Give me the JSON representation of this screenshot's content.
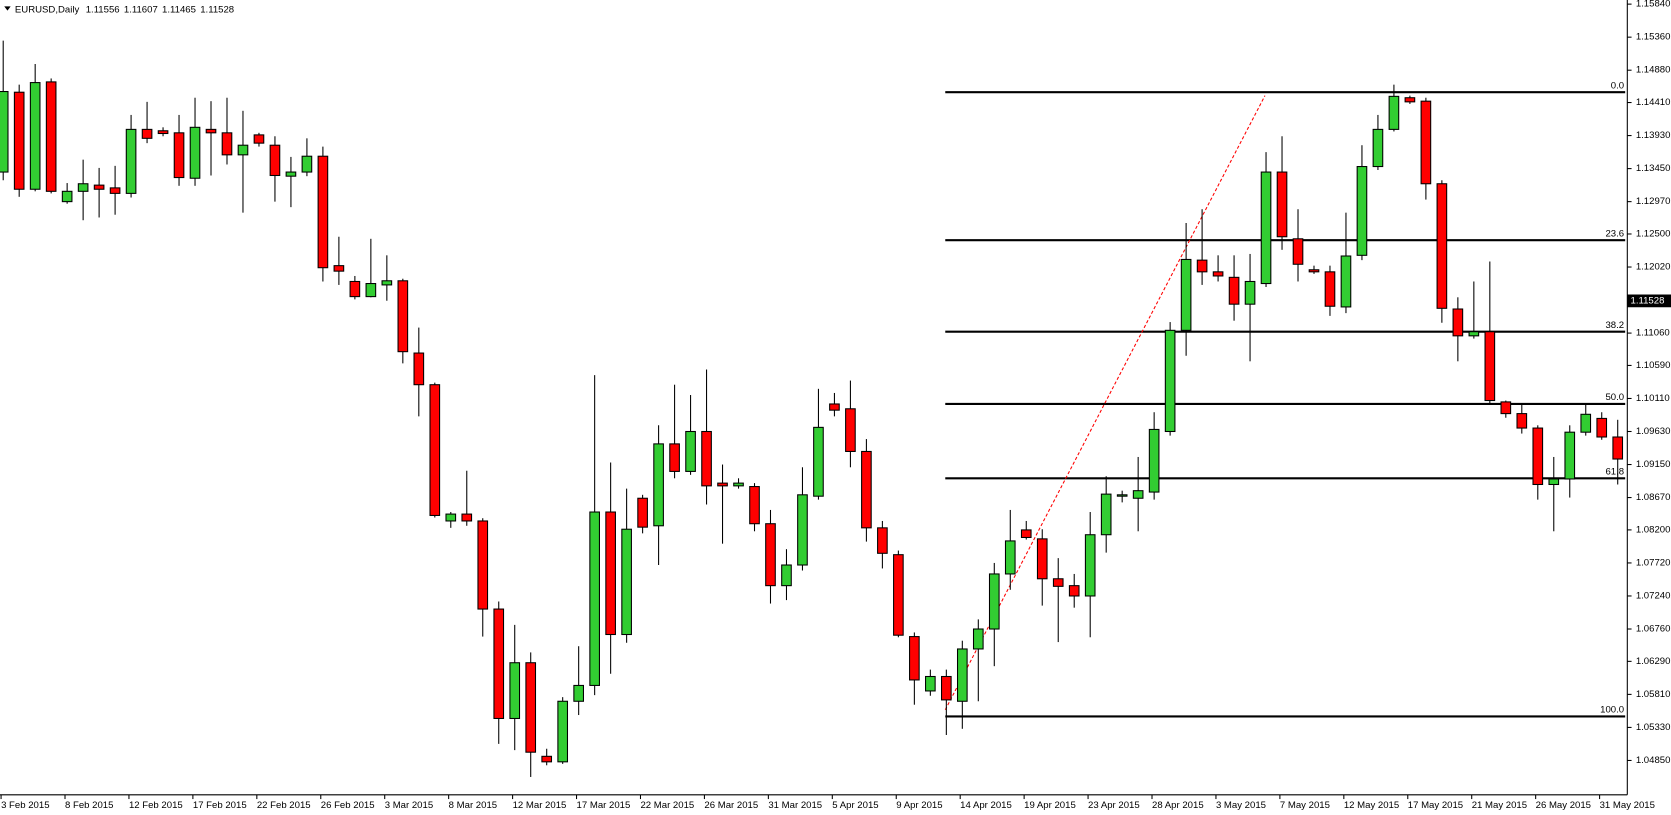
{
  "chart_data": {
    "type": "candlestick",
    "symbol": "EURUSD,Daily",
    "quote": {
      "open": 1.11556,
      "high": 1.11607,
      "low": 1.11465,
      "close": 1.11528
    },
    "up_color": "#32cd32",
    "down_color": "#ff0000",
    "ylim": [
      1.0436,
      1.159
    ],
    "yticks": [
      {
        "value": 1.1584,
        "label": "1.15840"
      },
      {
        "value": 1.1536,
        "label": "1.15360"
      },
      {
        "value": 1.1488,
        "label": "1.14880"
      },
      {
        "value": 1.1441,
        "label": "1.14410"
      },
      {
        "value": 1.1393,
        "label": "1.13930"
      },
      {
        "value": 1.1345,
        "label": "1.13450"
      },
      {
        "value": 1.1297,
        "label": "1.12970"
      },
      {
        "value": 1.125,
        "label": "1.12500"
      },
      {
        "value": 1.1202,
        "label": "1.12020"
      },
      {
        "value": 1.1106,
        "label": "1.11060"
      },
      {
        "value": 1.1059,
        "label": "1.10590"
      },
      {
        "value": 1.1011,
        "label": "1.10110"
      },
      {
        "value": 1.0963,
        "label": "1.09630"
      },
      {
        "value": 1.0915,
        "label": "1.09150"
      },
      {
        "value": 1.0867,
        "label": "1.08670"
      },
      {
        "value": 1.082,
        "label": "1.08200"
      },
      {
        "value": 1.0772,
        "label": "1.07720"
      },
      {
        "value": 1.0724,
        "label": "1.07240"
      },
      {
        "value": 1.0676,
        "label": "1.06760"
      },
      {
        "value": 1.0629,
        "label": "1.06290"
      },
      {
        "value": 1.0581,
        "label": "1.05810"
      },
      {
        "value": 1.0533,
        "label": "1.05330"
      },
      {
        "value": 1.0485,
        "label": "1.04850"
      }
    ],
    "categories": [
      "3 Feb 2015",
      null,
      null,
      null,
      "8 Feb 2015",
      null,
      null,
      null,
      "12 Feb 2015",
      null,
      null,
      null,
      "17 Feb 2015",
      null,
      null,
      null,
      "22 Feb 2015",
      null,
      null,
      null,
      "26 Feb 2015",
      null,
      null,
      null,
      "3 Mar 2015",
      null,
      null,
      null,
      "8 Mar 2015",
      null,
      null,
      null,
      "12 Mar 2015",
      null,
      null,
      null,
      "17 Mar 2015",
      null,
      null,
      null,
      "22 Mar 2015",
      null,
      null,
      null,
      "26 Mar 2015",
      null,
      null,
      null,
      "31 Mar 2015",
      null,
      null,
      null,
      "5 Apr 2015",
      null,
      null,
      null,
      "9 Apr 2015",
      null,
      null,
      null,
      "14 Apr 2015",
      null,
      null,
      null,
      "19 Apr 2015",
      null,
      null,
      null,
      "23 Apr 2015",
      null,
      null,
      null,
      "28 Apr 2015",
      null,
      null,
      null,
      "3 May 2015",
      null,
      null,
      null,
      "7 May 2015",
      null,
      null,
      null,
      "12 May 2015",
      null,
      null,
      null,
      "17 May 2015",
      null,
      null,
      null,
      "21 May 2015",
      null,
      null,
      null,
      "26 May 2015",
      null,
      null,
      null,
      "31 May 2015",
      null
    ],
    "open": [
      1.134,
      1.1456,
      1.1315,
      1.1471,
      1.1297,
      1.1312,
      1.1321,
      1.1317,
      1.1309,
      1.1402,
      1.14,
      1.1397,
      1.1331,
      1.1402,
      1.1397,
      1.1365,
      1.1394,
      1.1379,
      1.1334,
      1.134,
      1.1363,
      1.1204,
      1.1181,
      1.1159,
      1.1176,
      1.1182,
      1.1077,
      1.1031,
      1.0833,
      1.0843,
      1.0833,
      1.0705,
      1.0546,
      1.0627,
      1.0491,
      1.0483,
      1.0571,
      1.0594,
      1.0846,
      1.0668,
      1.0866,
      1.0826,
      1.0945,
      1.0905,
      1.0963,
      1.0888,
      1.0884,
      1.0883,
      1.0829,
      1.0739,
      1.0769,
      1.0869,
      1.1003,
      1.0996,
      1.0934,
      1.0823,
      1.0784,
      1.0665,
      1.0586,
      1.0607,
      1.0571,
      1.0647,
      1.0676,
      1.0756,
      1.082,
      1.0807,
      1.0749,
      1.0739,
      1.0724,
      1.0813,
      1.0869,
      1.0866,
      1.0875,
      1.0963,
      1.111,
      1.1212,
      1.1195,
      1.1187,
      1.1148,
      1.1178,
      1.134,
      1.1243,
      1.1198,
      1.1195,
      1.1144,
      1.1219,
      1.1348,
      1.1402,
      1.1448,
      1.1443,
      1.1323,
      1.1141,
      1.1102,
      1.1108,
      1.1006,
      1.0989,
      1.0968,
      1.0886,
      1.0894,
      1.0962,
      1.0982,
      1.0955
    ],
    "high": [
      1.1531,
      1.1467,
      1.1497,
      1.1476,
      1.1324,
      1.1358,
      1.1346,
      1.1349,
      1.1423,
      1.1442,
      1.1405,
      1.1423,
      1.1448,
      1.1443,
      1.1448,
      1.1429,
      1.1397,
      1.1392,
      1.1362,
      1.1389,
      1.1377,
      1.1246,
      1.1189,
      1.1243,
      1.1219,
      1.1185,
      1.1114,
      1.1034,
      1.0846,
      1.0906,
      1.0837,
      1.0716,
      1.0682,
      1.0642,
      1.0502,
      1.0577,
      1.0651,
      1.1045,
      1.0918,
      1.088,
      1.0871,
      1.0972,
      1.1031,
      1.1016,
      1.1053,
      1.0915,
      1.0895,
      1.0888,
      1.0849,
      1.0792,
      1.0911,
      1.1025,
      1.1019,
      1.1037,
      1.0952,
      1.0833,
      1.079,
      1.0671,
      1.0617,
      1.0617,
      1.0659,
      1.069,
      1.0772,
      1.0849,
      1.0833,
      1.0821,
      1.0779,
      1.0756,
      1.0846,
      1.0898,
      1.0877,
      1.0926,
      1.0991,
      1.1122,
      1.1266,
      1.1286,
      1.1219,
      1.1219,
      1.1221,
      1.1369,
      1.1392,
      1.1286,
      1.1204,
      1.1204,
      1.1281,
      1.1379,
      1.1423,
      1.1467,
      1.1451,
      1.1448,
      1.1328,
      1.1158,
      1.1181,
      1.121,
      1.1008,
      1.1003,
      1.0972,
      1.0926,
      1.0972,
      1.1003,
      1.0991,
      1.098
    ],
    "low": [
      1.1328,
      1.1304,
      1.1312,
      1.1309,
      1.1294,
      1.127,
      1.1274,
      1.1278,
      1.1303,
      1.1382,
      1.1392,
      1.132,
      1.132,
      1.1335,
      1.1351,
      1.1281,
      1.1377,
      1.1297,
      1.1289,
      1.1334,
      1.1181,
      1.1176,
      1.1155,
      1.1158,
      1.1153,
      1.1062,
      1.0985,
      1.0838,
      1.0823,
      1.0826,
      1.0665,
      1.0509,
      1.05,
      1.0461,
      1.0478,
      1.048,
      1.0551,
      1.058,
      1.0611,
      1.0656,
      1.0815,
      1.0769,
      1.0895,
      1.09,
      1.0857,
      1.08,
      1.088,
      1.0818,
      1.0713,
      1.0718,
      1.0761,
      1.0864,
      1.0985,
      1.0911,
      1.0803,
      1.0764,
      1.0664,
      1.0566,
      1.0579,
      1.0522,
      1.0531,
      1.0571,
      1.0622,
      1.0733,
      1.0806,
      1.071,
      1.0657,
      1.0707,
      1.0664,
      1.0787,
      1.086,
      1.0818,
      1.0864,
      1.0957,
      1.1073,
      1.1176,
      1.1181,
      1.1124,
      1.1065,
      1.1173,
      1.1227,
      1.1181,
      1.1192,
      1.1131,
      1.1135,
      1.1212,
      1.1343,
      1.1399,
      1.1439,
      1.13,
      1.1121,
      1.1065,
      1.1098,
      1.1003,
      1.0983,
      1.096,
      1.0864,
      1.0818,
      1.0867,
      1.0957,
      1.0951,
      1.0886
    ],
    "close": [
      1.1457,
      1.1315,
      1.147,
      1.1312,
      1.1312,
      1.1323,
      1.1315,
      1.1309,
      1.1402,
      1.1389,
      1.1396,
      1.1332,
      1.1405,
      1.1397,
      1.1365,
      1.1379,
      1.1382,
      1.1335,
      1.134,
      1.1363,
      1.1201,
      1.1196,
      1.1159,
      1.1178,
      1.1182,
      1.1079,
      1.1031,
      1.0841,
      1.0843,
      1.0833,
      1.0705,
      1.0546,
      1.0627,
      1.0497,
      1.0483,
      1.0571,
      1.0594,
      1.0846,
      1.0668,
      1.0821,
      1.0824,
      1.0945,
      1.0905,
      1.0963,
      1.0884,
      1.0884,
      1.0888,
      1.0829,
      1.0739,
      1.0769,
      1.0871,
      1.0969,
      1.0994,
      1.0934,
      1.0823,
      1.0786,
      1.0667,
      1.0602,
      1.0607,
      1.0573,
      1.0647,
      1.0676,
      1.0756,
      1.0804,
      1.0809,
      1.0749,
      1.0738,
      1.0724,
      1.0813,
      1.0872,
      1.0871,
      1.0877,
      1.0966,
      1.111,
      1.1213,
      1.1195,
      1.1189,
      1.1148,
      1.1181,
      1.134,
      1.1246,
      1.1206,
      1.1195,
      1.1145,
      1.1218,
      1.1348,
      1.1402,
      1.145,
      1.1442,
      1.1323,
      1.1142,
      1.1102,
      1.1108,
      1.1008,
      1.0989,
      1.0968,
      1.0886,
      1.0894,
      1.0962,
      1.0988,
      1.0955,
      1.0923
    ],
    "fibonacci": {
      "levels": [
        {
          "value": 0,
          "label": "0.0"
        },
        {
          "value": 23.6,
          "label": "23.6"
        },
        {
          "value": 38.2,
          "label": "38.2"
        },
        {
          "value": 50,
          "label": "50.0"
        },
        {
          "value": 61.8,
          "label": "61.8"
        },
        {
          "value": 100,
          "label": "100.0"
        }
      ],
      "prices": [
        1.1456,
        1.1241,
        1.1108,
        1.1003,
        1.0895,
        1.0549
      ]
    }
  }
}
